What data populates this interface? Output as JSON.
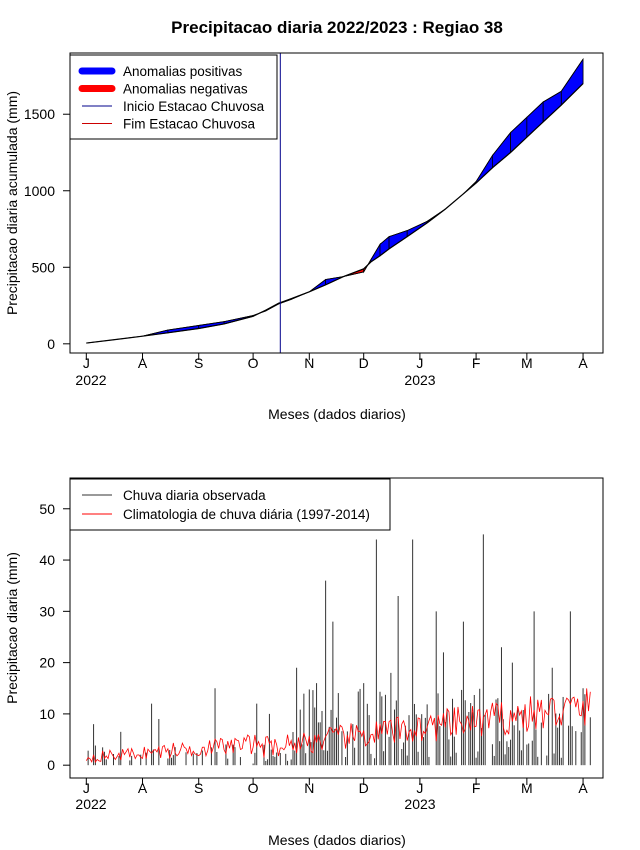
{
  "chart_data": [
    {
      "type": "area",
      "title": "Precipitacao diaria 2022/2023 : Regiao 38",
      "xlabel": "Meses (dados diarios)",
      "ylabel": "Precipitacao diaria acumulada (mm)",
      "ylim": [
        -60,
        1900
      ],
      "y_ticks": [
        0,
        500,
        1000,
        1500
      ],
      "x_ticks": [
        "J",
        "A",
        "S",
        "O",
        "N",
        "D",
        "J",
        "F",
        "M",
        "A"
      ],
      "year_labels": [
        "2022",
        "2023"
      ],
      "x_range": [
        "2022-07-01",
        "2023-04-07"
      ],
      "rainy_season_start": "2022-10-16",
      "legend": {
        "position": "top-left",
        "entries": [
          {
            "label": "Anomalias positivas",
            "color": "#0000ff",
            "style": "thick"
          },
          {
            "label": "Anomalias negativas",
            "color": "#ff0000",
            "style": "thick"
          },
          {
            "label": "Inicio Estacao Chuvosa",
            "color": "#00008b",
            "style": "line"
          },
          {
            "label": "Fim Estacao Chuvosa",
            "color": "#cc0000",
            "style": "line"
          }
        ]
      },
      "series": [
        {
          "name": "Observada",
          "x": [
            "2022-07-01",
            "2022-07-15",
            "2022-08-01",
            "2022-08-15",
            "2022-09-01",
            "2022-09-15",
            "2022-10-01",
            "2022-10-08",
            "2022-10-15",
            "2022-10-22",
            "2022-11-01",
            "2022-11-10",
            "2022-11-20",
            "2022-12-01",
            "2022-12-05",
            "2022-12-10",
            "2022-12-15",
            "2022-12-25",
            "2023-01-05",
            "2023-01-15",
            "2023-01-25",
            "2023-02-01",
            "2023-02-10",
            "2023-02-20",
            "2023-03-01",
            "2023-03-10",
            "2023-03-20",
            "2023-04-01"
          ],
          "y": [
            5,
            25,
            50,
            90,
            120,
            145,
            185,
            215,
            260,
            290,
            340,
            420,
            440,
            470,
            550,
            650,
            700,
            740,
            800,
            880,
            980,
            1060,
            1230,
            1380,
            1480,
            1580,
            1650,
            1860
          ]
        },
        {
          "name": "Climatologia",
          "x": [
            "2022-07-01",
            "2022-07-15",
            "2022-08-01",
            "2022-08-15",
            "2022-09-01",
            "2022-09-15",
            "2022-10-01",
            "2022-10-08",
            "2022-10-15",
            "2022-10-22",
            "2022-11-01",
            "2022-11-10",
            "2022-11-20",
            "2022-12-01",
            "2022-12-05",
            "2022-12-10",
            "2022-12-15",
            "2022-12-25",
            "2023-01-05",
            "2023-01-15",
            "2023-01-25",
            "2023-02-01",
            "2023-02-10",
            "2023-02-20",
            "2023-03-01",
            "2023-03-10",
            "2023-03-20",
            "2023-04-01"
          ],
          "y": [
            5,
            25,
            50,
            72,
            100,
            130,
            180,
            220,
            265,
            295,
            340,
            385,
            440,
            490,
            535,
            575,
            620,
            700,
            790,
            880,
            980,
            1050,
            1150,
            1250,
            1350,
            1450,
            1560,
            1700
          ]
        }
      ]
    },
    {
      "type": "bar",
      "xlabel": "Meses (dados diarios)",
      "ylabel": "Precipitacao diaria (mm)",
      "ylim": [
        -2.5,
        56
      ],
      "y_ticks": [
        0,
        10,
        20,
        30,
        40,
        50
      ],
      "x_ticks": [
        "J",
        "A",
        "S",
        "O",
        "N",
        "D",
        "J",
        "F",
        "M",
        "A"
      ],
      "year_labels": [
        "2022",
        "2023"
      ],
      "x_range": [
        "2022-07-01",
        "2023-04-05"
      ],
      "legend": {
        "position": "top-left",
        "entries": [
          {
            "label": "Chuva diaria observada",
            "color": "#333333"
          },
          {
            "label": "Climatologia de chuva diária (1997-2014)",
            "color": "#ff0000"
          }
        ]
      },
      "peaks": [
        {
          "x": "2022-07-05",
          "y": 8
        },
        {
          "x": "2022-07-20",
          "y": 6.5
        },
        {
          "x": "2022-08-06",
          "y": 12
        },
        {
          "x": "2022-08-10",
          "y": 9
        },
        {
          "x": "2022-09-10",
          "y": 15
        },
        {
          "x": "2022-09-20",
          "y": 4
        },
        {
          "x": "2022-10-03",
          "y": 12
        },
        {
          "x": "2022-10-10",
          "y": 10
        },
        {
          "x": "2022-10-25",
          "y": 19
        },
        {
          "x": "2022-11-05",
          "y": 16
        },
        {
          "x": "2022-11-10",
          "y": 36
        },
        {
          "x": "2022-11-14",
          "y": 28
        },
        {
          "x": "2022-11-25",
          "y": 8
        },
        {
          "x": "2022-12-01",
          "y": 16
        },
        {
          "x": "2022-12-08",
          "y": 44
        },
        {
          "x": "2022-12-16",
          "y": 18
        },
        {
          "x": "2022-12-20",
          "y": 33
        },
        {
          "x": "2022-12-28",
          "y": 44
        },
        {
          "x": "2023-01-10",
          "y": 30
        },
        {
          "x": "2023-01-14",
          "y": 22
        },
        {
          "x": "2023-01-25",
          "y": 28
        },
        {
          "x": "2023-02-05",
          "y": 45
        },
        {
          "x": "2023-02-15",
          "y": 23
        },
        {
          "x": "2023-02-21",
          "y": 20
        },
        {
          "x": "2023-03-05",
          "y": 30
        },
        {
          "x": "2023-03-15",
          "y": 19
        },
        {
          "x": "2023-03-25",
          "y": 30
        },
        {
          "x": "2023-04-01",
          "y": 15
        }
      ]
    }
  ]
}
